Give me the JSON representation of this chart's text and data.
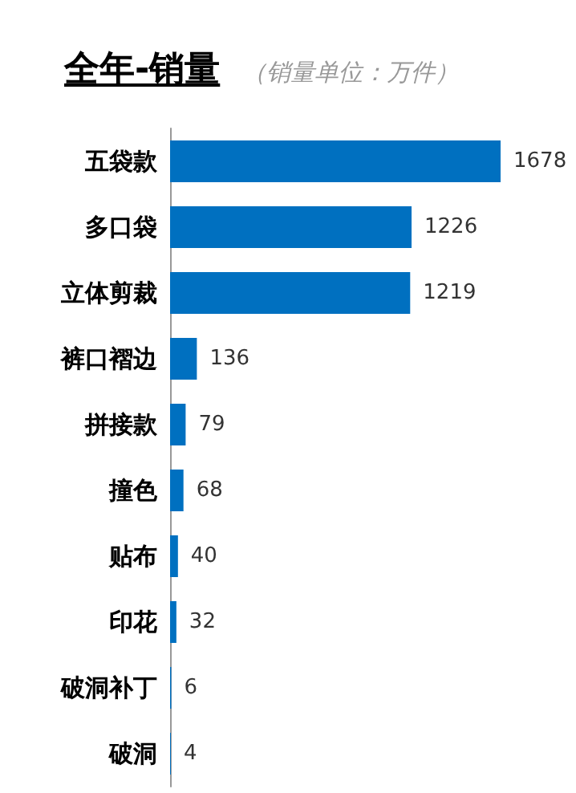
{
  "chart_data": {
    "type": "bar",
    "orientation": "horizontal",
    "title": "全年-销量",
    "subtitle": "（销量单位：万件）",
    "categories": [
      "五袋款",
      "多口袋",
      "立体剪裁",
      "裤口褶边",
      "拼接款",
      "撞色",
      "贴布",
      "印花",
      "破洞补丁",
      "破洞"
    ],
    "values": [
      1678,
      1226,
      1219,
      136,
      79,
      68,
      40,
      32,
      6,
      4
    ],
    "color": "#0070c0",
    "data_labels": true
  }
}
